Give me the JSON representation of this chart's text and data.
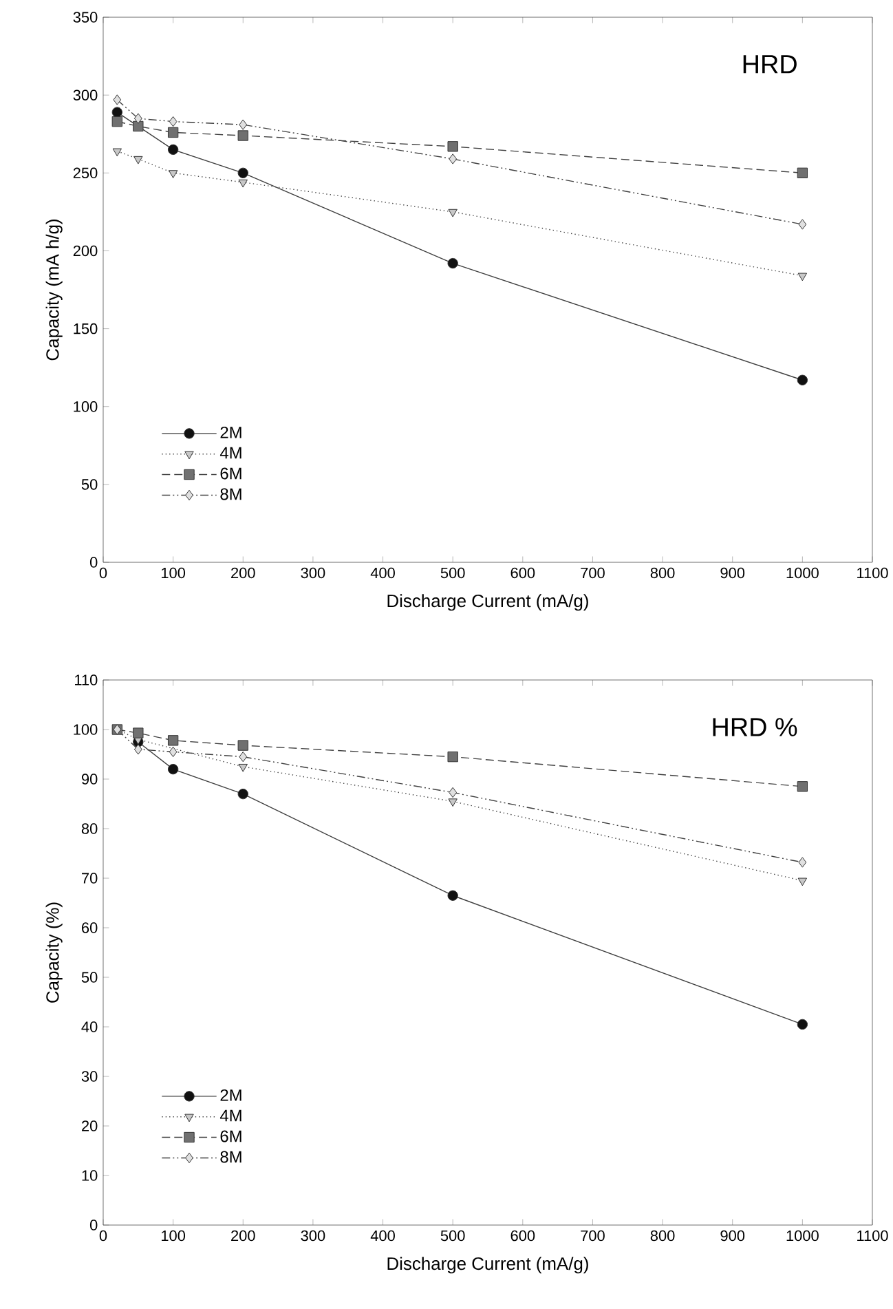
{
  "chart_data": [
    {
      "type": "line",
      "xlabel": "Discharge Current (mA/g)",
      "ylabel": "Capacity (mA h/g)",
      "annotations": [
        "HRD"
      ],
      "x": [
        20,
        50,
        100,
        200,
        500,
        1000
      ],
      "xlim": [
        0,
        1100
      ],
      "xticks": [
        0,
        100,
        200,
        300,
        400,
        500,
        600,
        700,
        800,
        900,
        1000,
        1100
      ],
      "ylim": [
        0,
        350
      ],
      "yticks": [
        0,
        50,
        100,
        150,
        200,
        250,
        300,
        350
      ],
      "legend": "bottom left",
      "grid": false,
      "series": [
        {
          "name": "2M",
          "color": "#111111",
          "marker": "circle",
          "line_style": "solid",
          "values": [
            289,
            null,
            265,
            250,
            192,
            117
          ]
        },
        {
          "name": "4M",
          "color": "#c8c8c8",
          "marker": "triangle",
          "line_style": "dotted",
          "values": [
            264,
            259,
            250,
            244,
            225,
            184
          ]
        },
        {
          "name": "6M",
          "color": "#707070",
          "marker": "square",
          "line_style": "dashed",
          "values": [
            283,
            280,
            276,
            274,
            267,
            250
          ]
        },
        {
          "name": "8M",
          "color": "#e0e0e0",
          "marker": "diamond",
          "line_style": "dashdotted",
          "values": [
            297,
            285,
            283,
            281,
            259,
            217
          ]
        }
      ]
    },
    {
      "type": "line",
      "xlabel": "Discharge Current (mA/g)",
      "ylabel": "Capacity (%)",
      "annotations": [
        "HRD %"
      ],
      "x": [
        20,
        50,
        100,
        200,
        500,
        1000
      ],
      "xlim": [
        0,
        1100
      ],
      "xticks": [
        0,
        100,
        200,
        300,
        400,
        500,
        600,
        700,
        800,
        900,
        1000,
        1100
      ],
      "ylim": [
        0,
        110
      ],
      "yticks": [
        0,
        10,
        20,
        30,
        40,
        50,
        60,
        70,
        80,
        90,
        100,
        110
      ],
      "legend": "bottom left",
      "grid": false,
      "series": [
        {
          "name": "2M",
          "color": "#111111",
          "marker": "circle",
          "line_style": "solid",
          "values": [
            null,
            97.5,
            92,
            87,
            66.5,
            40.5
          ]
        },
        {
          "name": "4M",
          "color": "#c8c8c8",
          "marker": "triangle",
          "line_style": "dotted",
          "values": [
            100,
            98,
            null,
            92.5,
            85.5,
            69.5
          ]
        },
        {
          "name": "6M",
          "color": "#707070",
          "marker": "square",
          "line_style": "dashed",
          "values": [
            100,
            99.3,
            97.8,
            96.8,
            94.5,
            88.5
          ]
        },
        {
          "name": "8M",
          "color": "#e0e0e0",
          "marker": "diamond",
          "line_style": "dashdotted",
          "values": [
            100,
            96,
            95.5,
            94.5,
            87.3,
            73.2
          ]
        }
      ]
    }
  ]
}
